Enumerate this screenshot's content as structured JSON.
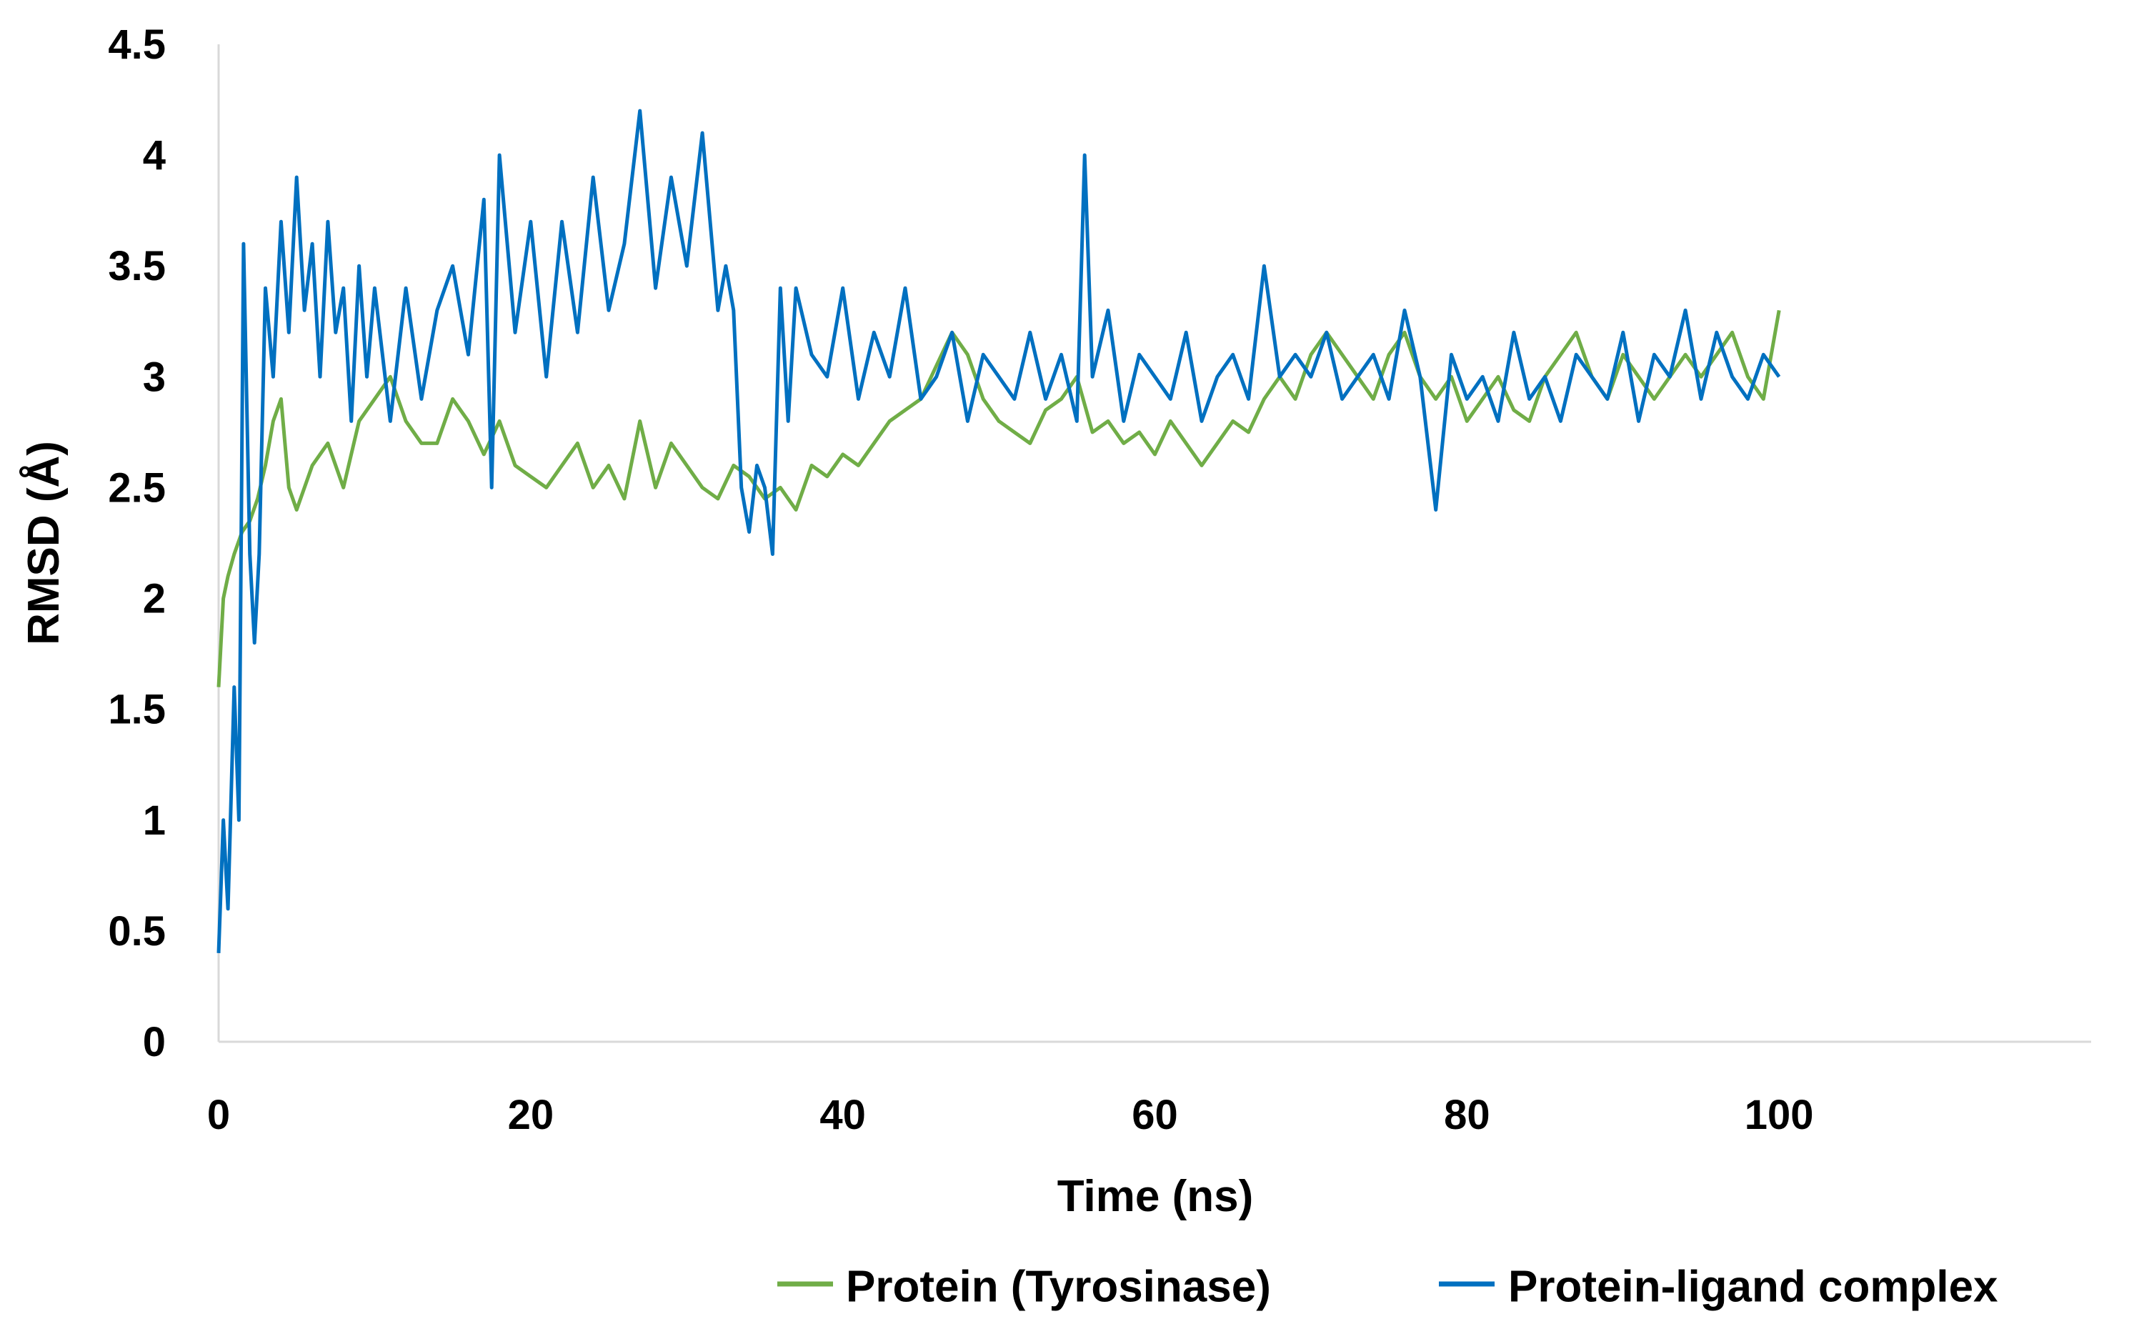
{
  "chart_data": {
    "type": "line",
    "title": "",
    "xlabel": "Time (ns)",
    "ylabel": "RMSD (Å)",
    "xlim": [
      0,
      120
    ],
    "ylim": [
      0,
      4.5
    ],
    "x_ticks": [
      "0",
      "20",
      "40",
      "60",
      "80",
      "100"
    ],
    "y_ticks": [
      "0",
      "0.5",
      "1",
      "1.5",
      "2",
      "2.5",
      "3",
      "3.5",
      "4",
      "4.5"
    ],
    "grid": false,
    "legend_position": "bottom-right",
    "series": [
      {
        "name": "Protein (Tyrosinase)",
        "color": "#70ad47",
        "x": [
          0,
          0.3,
          0.6,
          1,
          1.5,
          2,
          2.5,
          3,
          3.5,
          4,
          4.5,
          5,
          6,
          7,
          8,
          9,
          10,
          11,
          12,
          13,
          14,
          15,
          16,
          17,
          18,
          19,
          20,
          21,
          22,
          23,
          24,
          25,
          26,
          27,
          28,
          29,
          30,
          31,
          32,
          33,
          34,
          35,
          36,
          37,
          38,
          39,
          40,
          41,
          42,
          43,
          44,
          45,
          46,
          47,
          48,
          49,
          50,
          51,
          52,
          53,
          54,
          55,
          56,
          57,
          58,
          59,
          60,
          61,
          62,
          63,
          64,
          65,
          66,
          67,
          68,
          69,
          70,
          71,
          72,
          73,
          74,
          75,
          76,
          77,
          78,
          79,
          80,
          81,
          82,
          83,
          84,
          85,
          86,
          87,
          88,
          89,
          90,
          91,
          92,
          93,
          94,
          95,
          96,
          97,
          98,
          99,
          100
        ],
        "y": [
          1.6,
          2.0,
          2.1,
          2.2,
          2.3,
          2.35,
          2.45,
          2.6,
          2.8,
          2.9,
          2.5,
          2.4,
          2.6,
          2.7,
          2.5,
          2.8,
          2.9,
          3.0,
          2.8,
          2.7,
          2.7,
          2.9,
          2.8,
          2.65,
          2.8,
          2.6,
          2.55,
          2.5,
          2.6,
          2.7,
          2.5,
          2.6,
          2.45,
          2.8,
          2.5,
          2.7,
          2.6,
          2.5,
          2.45,
          2.6,
          2.55,
          2.45,
          2.5,
          2.4,
          2.6,
          2.55,
          2.65,
          2.6,
          2.7,
          2.8,
          2.85,
          2.9,
          3.05,
          3.2,
          3.1,
          2.9,
          2.8,
          2.75,
          2.7,
          2.85,
          2.9,
          3.0,
          2.75,
          2.8,
          2.7,
          2.75,
          2.65,
          2.8,
          2.7,
          2.6,
          2.7,
          2.8,
          2.75,
          2.9,
          3.0,
          2.9,
          3.1,
          3.2,
          3.1,
          3.0,
          2.9,
          3.1,
          3.2,
          3.0,
          2.9,
          3.0,
          2.8,
          2.9,
          3.0,
          2.85,
          2.8,
          3.0,
          3.1,
          3.2,
          3.0,
          2.9,
          3.1,
          3.0,
          2.9,
          3.0,
          3.1,
          3.0,
          3.1,
          3.2,
          3.0,
          2.9,
          3.3
        ]
      },
      {
        "name": "Protein-ligand complex",
        "color": "#0070c0",
        "x": [
          0,
          0.3,
          0.6,
          1,
          1.3,
          1.6,
          2,
          2.3,
          2.6,
          3,
          3.5,
          4,
          4.5,
          5,
          5.5,
          6,
          6.5,
          7,
          7.5,
          8,
          8.5,
          9,
          9.5,
          10,
          11,
          12,
          13,
          14,
          15,
          16,
          17,
          17.5,
          18,
          19,
          20,
          21,
          22,
          23,
          24,
          25,
          26,
          27,
          28,
          29,
          30,
          31,
          32,
          32.5,
          33,
          33.5,
          34,
          34.5,
          35,
          35.5,
          36,
          36.5,
          37,
          38,
          39,
          40,
          41,
          42,
          43,
          44,
          45,
          46,
          47,
          48,
          49,
          50,
          51,
          52,
          53,
          54,
          55,
          55.5,
          56,
          57,
          58,
          59,
          60,
          61,
          62,
          63,
          64,
          65,
          66,
          67,
          68,
          69,
          70,
          71,
          72,
          73,
          74,
          75,
          76,
          77,
          78,
          79,
          80,
          81,
          82,
          83,
          84,
          85,
          86,
          87,
          88,
          89,
          90,
          91,
          92,
          93,
          94,
          95,
          96,
          97,
          98,
          99,
          100
        ],
        "y": [
          0.4,
          1.0,
          0.6,
          1.6,
          1.0,
          3.6,
          2.2,
          1.8,
          2.2,
          3.4,
          3.0,
          3.7,
          3.2,
          3.9,
          3.3,
          3.6,
          3.0,
          3.7,
          3.2,
          3.4,
          2.8,
          3.5,
          3.0,
          3.4,
          2.8,
          3.4,
          2.9,
          3.3,
          3.5,
          3.1,
          3.8,
          2.5,
          4.0,
          3.2,
          3.7,
          3.0,
          3.7,
          3.2,
          3.9,
          3.3,
          3.6,
          4.2,
          3.4,
          3.9,
          3.5,
          4.1,
          3.3,
          3.5,
          3.3,
          2.5,
          2.3,
          2.6,
          2.5,
          2.2,
          3.4,
          2.8,
          3.4,
          3.1,
          3.0,
          3.4,
          2.9,
          3.2,
          3.0,
          3.4,
          2.9,
          3.0,
          3.2,
          2.8,
          3.1,
          3.0,
          2.9,
          3.2,
          2.9,
          3.1,
          2.8,
          4.0,
          3.0,
          3.3,
          2.8,
          3.1,
          3.0,
          2.9,
          3.2,
          2.8,
          3.0,
          3.1,
          2.9,
          3.5,
          3.0,
          3.1,
          3.0,
          3.2,
          2.9,
          3.0,
          3.1,
          2.9,
          3.3,
          3.0,
          2.4,
          3.1,
          2.9,
          3.0,
          2.8,
          3.2,
          2.9,
          3.0,
          2.8,
          3.1,
          3.0,
          2.9,
          3.2,
          2.8,
          3.1,
          3.0,
          3.3,
          2.9,
          3.2,
          3.0,
          2.9,
          3.1,
          3.0
        ]
      }
    ]
  }
}
